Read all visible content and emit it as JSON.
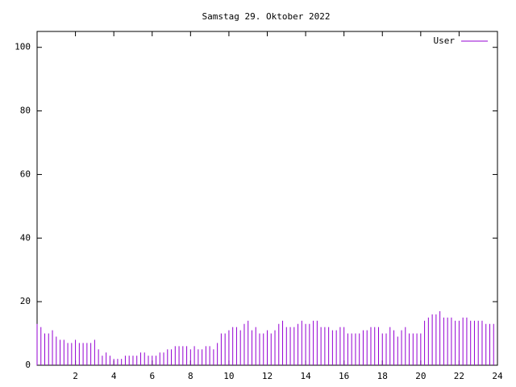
{
  "chart_data": {
    "type": "impulse",
    "title": "Samstag 29. Oktober 2022",
    "xlim": [
      0,
      24
    ],
    "ylim": [
      0,
      105
    ],
    "xticks": [
      2,
      4,
      6,
      8,
      10,
      12,
      14,
      16,
      18,
      20,
      22,
      24
    ],
    "yticks": [
      0,
      20,
      40,
      60,
      80,
      100
    ],
    "legend": "top-right",
    "series": [
      {
        "name": "User",
        "color": "#9400d3",
        "x": [
          0,
          0.2,
          0.4,
          0.6,
          0.8,
          1,
          1.2,
          1.4,
          1.6,
          1.8,
          2,
          2.2,
          2.4,
          2.6,
          2.8,
          3,
          3.2,
          3.4,
          3.6,
          3.8,
          4,
          4.2,
          4.4,
          4.6,
          4.8,
          5,
          5.2,
          5.4,
          5.6,
          5.8,
          6,
          6.2,
          6.4,
          6.6,
          6.8,
          7,
          7.2,
          7.4,
          7.6,
          7.8,
          8,
          8.2,
          8.4,
          8.6,
          8.8,
          9,
          9.2,
          9.4,
          9.6,
          9.8,
          10,
          10.2,
          10.4,
          10.6,
          10.8,
          11,
          11.2,
          11.4,
          11.6,
          11.8,
          12,
          12.2,
          12.4,
          12.6,
          12.8,
          13,
          13.2,
          13.4,
          13.6,
          13.8,
          14,
          14.2,
          14.4,
          14.6,
          14.8,
          15,
          15.2,
          15.4,
          15.6,
          15.8,
          16,
          16.2,
          16.4,
          16.6,
          16.8,
          17,
          17.2,
          17.4,
          17.6,
          17.8,
          18,
          18.2,
          18.4,
          18.6,
          18.8,
          19,
          19.2,
          19.4,
          19.6,
          19.8,
          20,
          20.2,
          20.4,
          20.6,
          20.8,
          21,
          21.2,
          21.4,
          21.6,
          21.8,
          22,
          22.2,
          22.4,
          22.6,
          22.8,
          23,
          23.2,
          23.4,
          23.6,
          23.8
        ],
        "values": [
          13,
          12,
          10,
          10,
          11,
          9,
          8,
          8,
          7,
          7,
          8,
          7,
          7,
          7,
          7,
          8,
          5,
          3,
          4,
          3,
          2,
          2,
          2,
          3,
          3,
          3,
          3,
          4,
          4,
          3,
          3,
          3,
          4,
          4,
          5,
          5,
          6,
          6,
          6,
          6,
          5,
          6,
          5,
          5,
          6,
          6,
          5,
          7,
          10,
          10,
          11,
          12,
          12,
          11,
          13,
          14,
          11,
          12,
          10,
          10,
          11,
          10,
          11,
          13,
          14,
          12,
          12,
          12,
          13,
          14,
          13,
          13,
          14,
          14,
          12,
          12,
          12,
          11,
          11,
          12,
          12,
          10,
          10,
          10,
          10,
          11,
          11,
          12,
          12,
          12,
          10,
          10,
          12,
          11,
          9,
          11,
          12,
          10,
          10,
          10,
          10,
          14,
          15,
          16,
          16,
          17,
          15,
          15,
          15,
          14,
          14,
          15,
          15,
          14,
          14,
          14,
          14,
          13,
          13,
          13
        ]
      }
    ]
  }
}
